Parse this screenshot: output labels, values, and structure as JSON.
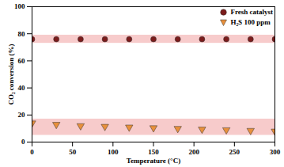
{
  "chart_data": {
    "type": "scatter",
    "x_label": "Temperature (°C)",
    "y_label": "CO₂ conversion (%)",
    "x": [
      0,
      30,
      60,
      90,
      120,
      150,
      180,
      210,
      240,
      270,
      300
    ],
    "series": [
      {
        "name": "Fresh catalyst",
        "color": "#7b1c1c",
        "marker": "circle",
        "values": [
          76,
          76,
          76,
          76,
          76,
          76,
          76,
          76,
          76,
          76,
          76
        ]
      },
      {
        "name": "H₂S 100 ppm",
        "color": "#e8903c",
        "marker": "triangle-down",
        "values": [
          14,
          13,
          12,
          11.5,
          11,
          10.5,
          10,
          9.5,
          9,
          8.5,
          8
        ]
      }
    ],
    "xlim": [
      0,
      300
    ],
    "xticks": [
      0,
      50,
      100,
      150,
      200,
      250,
      300
    ],
    "ylim": [
      0,
      100
    ],
    "yticks": [
      0,
      20,
      40,
      60,
      80,
      100
    ],
    "grid": false,
    "legend": "top-right"
  }
}
